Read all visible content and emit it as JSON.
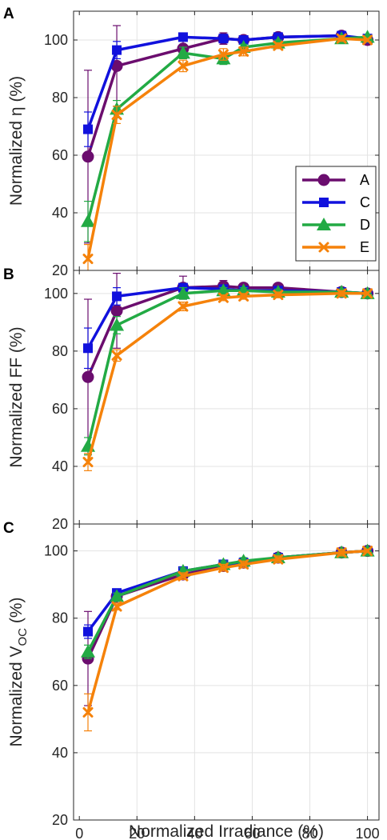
{
  "chart_data": [
    {
      "type": "line",
      "panel": "A",
      "ylabel": "Normalized η (%)",
      "ylim": [
        20,
        110
      ],
      "yticks": [
        "20",
        "40",
        "60",
        "80",
        "100"
      ],
      "xlim": [
        -2,
        104
      ],
      "grid": true,
      "legend": {
        "placement": "right",
        "entries": [
          "A",
          "C",
          "D",
          "E"
        ]
      },
      "x": [
        3,
        13,
        36,
        50,
        57,
        69,
        91,
        100
      ],
      "series": [
        {
          "name": "A",
          "color": "#6b0d6e",
          "marker": "circle",
          "values": [
            59.5,
            91,
            97,
            100.5,
            100,
            101,
            101.5,
            100
          ],
          "err": [
            30,
            14,
            3,
            2,
            1.5,
            1,
            1,
            0.5
          ]
        },
        {
          "name": "C",
          "color": "#1111dd",
          "marker": "square",
          "values": [
            69,
            96.5,
            101,
            100.5,
            100,
            101,
            101.5,
            100.5
          ],
          "err": [
            6,
            3,
            1,
            1,
            1,
            1,
            1,
            0.5
          ]
        },
        {
          "name": "D",
          "color": "#22aa44",
          "marker": "triangle",
          "values": [
            37,
            76,
            95.5,
            93.5,
            97.5,
            99,
            100.5,
            101
          ],
          "err": [
            7,
            3,
            2,
            2,
            1,
            1,
            1,
            0.5
          ]
        },
        {
          "name": "E",
          "color": "#f5820a",
          "marker": "x",
          "values": [
            24,
            74,
            91,
            95,
            96,
            98,
            100.5,
            100
          ],
          "err": [
            5,
            3,
            2,
            2,
            1.5,
            1,
            1,
            0.5
          ]
        }
      ]
    },
    {
      "type": "line",
      "panel": "B",
      "ylabel": "Normalized FF (%)",
      "ylim": [
        20,
        108
      ],
      "yticks": [
        "20",
        "40",
        "60",
        "80",
        "100"
      ],
      "xlim": [
        -2,
        104
      ],
      "grid": true,
      "x": [
        3,
        13,
        36,
        50,
        57,
        69,
        91,
        100
      ],
      "series": [
        {
          "name": "A",
          "color": "#6b0d6e",
          "marker": "circle",
          "values": [
            71,
            94,
            102,
            102.5,
            102,
            102,
            100.5,
            100
          ],
          "err": [
            27,
            13,
            4,
            2,
            1.5,
            1,
            1,
            0.5
          ]
        },
        {
          "name": "C",
          "color": "#1111dd",
          "marker": "square",
          "values": [
            81,
            99,
            102,
            101.5,
            101,
            101,
            100.5,
            100
          ],
          "err": [
            7,
            3,
            1,
            1,
            1,
            1,
            1,
            0.5
          ]
        },
        {
          "name": "D",
          "color": "#22aa44",
          "marker": "triangle",
          "values": [
            47,
            89,
            100,
            101,
            101,
            100.5,
            100.5,
            100
          ],
          "err": [
            3,
            3,
            2,
            1,
            1,
            1,
            1,
            0.5
          ]
        },
        {
          "name": "E",
          "color": "#f5820a",
          "marker": "x",
          "values": [
            41.5,
            78.5,
            95.5,
            98.5,
            99,
            99.5,
            100,
            100
          ],
          "err": [
            3,
            2,
            1.5,
            1,
            1,
            1,
            1,
            0.5
          ]
        }
      ]
    },
    {
      "type": "line",
      "panel": "C",
      "ylabel_main": "Normalized V",
      "ylabel_sub": "OC",
      "ylabel_tail": "  (%)",
      "ylim": [
        20,
        108
      ],
      "yticks": [
        "20",
        "40",
        "60",
        "80",
        "100"
      ],
      "xlabel": "Normalized Irradiance (%)",
      "xticks": [
        "0",
        "20",
        "40",
        "60",
        "80",
        "100"
      ],
      "xlim": [
        -2,
        104
      ],
      "grid": true,
      "x": [
        3,
        13,
        36,
        50,
        57,
        69,
        91,
        100
      ],
      "series": [
        {
          "name": "A",
          "color": "#6b0d6e",
          "marker": "circle",
          "values": [
            68,
            86.5,
            93,
            95.5,
            96.5,
            98,
            99.5,
            100
          ],
          "err": [
            14,
            2,
            1,
            1,
            1,
            1,
            1,
            0.5
          ]
        },
        {
          "name": "C",
          "color": "#1111dd",
          "marker": "square",
          "values": [
            76,
            87.5,
            94,
            96,
            96.5,
            98,
            99.5,
            100
          ],
          "err": [
            2,
            1,
            1,
            1,
            1,
            1,
            1,
            0.5
          ]
        },
        {
          "name": "D",
          "color": "#22aa44",
          "marker": "triangle",
          "values": [
            70,
            86.5,
            94,
            96,
            97,
            98,
            99.5,
            100
          ],
          "err": [
            2,
            1,
            1,
            1,
            1,
            1,
            1,
            0.5
          ]
        },
        {
          "name": "E",
          "color": "#f5820a",
          "marker": "x",
          "values": [
            52,
            83.5,
            92.5,
            95,
            96,
            97.5,
            99.5,
            100
          ],
          "err": [
            5.5,
            1,
            1,
            1,
            1,
            1,
            1,
            0.5
          ]
        }
      ]
    }
  ]
}
